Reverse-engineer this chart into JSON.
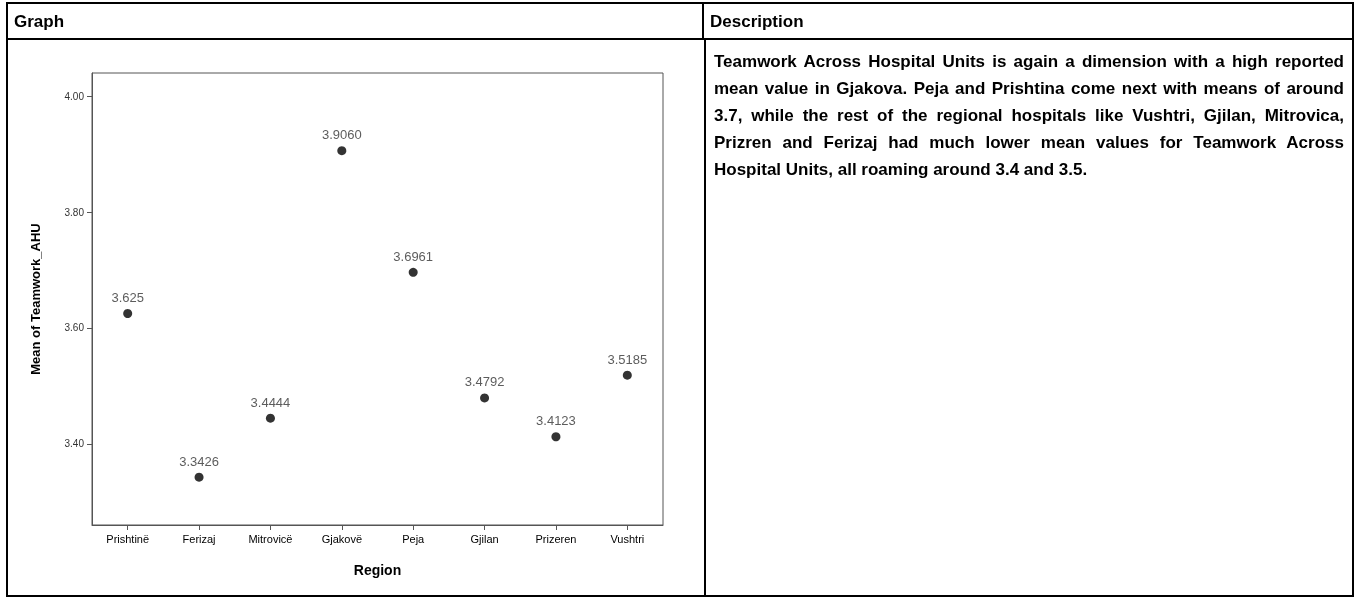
{
  "chart_data": {
    "type": "scatter",
    "xlabel": "Region",
    "ylabel": "Mean of Teamwork_AHU",
    "categories": [
      "Prishtinë",
      "Ferizaj",
      "Mitrovicë",
      "Gjakovë",
      "Peja",
      "Gjilan",
      "Prizeren",
      "Vushtri"
    ],
    "values": [
      3.625,
      3.3426,
      3.4444,
      3.906,
      3.6961,
      3.4792,
      3.4123,
      3.5185
    ],
    "value_labels": [
      "3.625",
      "3.3426",
      "3.4444",
      "3.9060",
      "3.6961",
      "3.4792",
      "3.4123",
      "3.5185"
    ],
    "color": "#000000",
    "marker": "circle",
    "grid": false,
    "ylim": [
      3.26,
      4.04
    ],
    "yticks": [
      {
        "value": 3.4,
        "label": "3.40"
      },
      {
        "value": 3.6,
        "label": "3.60"
      },
      {
        "value": 3.8,
        "label": "3.80"
      },
      {
        "value": 4.0,
        "label": "4.00"
      }
    ],
    "annotations": [
      "Graph",
      "Description",
      "Teamwork Across Hospital Units is again a dimension with a high reported mean value in Gjakova. Peja and Prishtina come next with means of around 3.7, while the rest of the regional hospitals like Vushtri, Gjilan, Mitrovica, Prizren and Ferizaj had much lower mean values for Teamwork Across Hospital Units, all roaming around 3.4 and 3.5."
    ]
  }
}
